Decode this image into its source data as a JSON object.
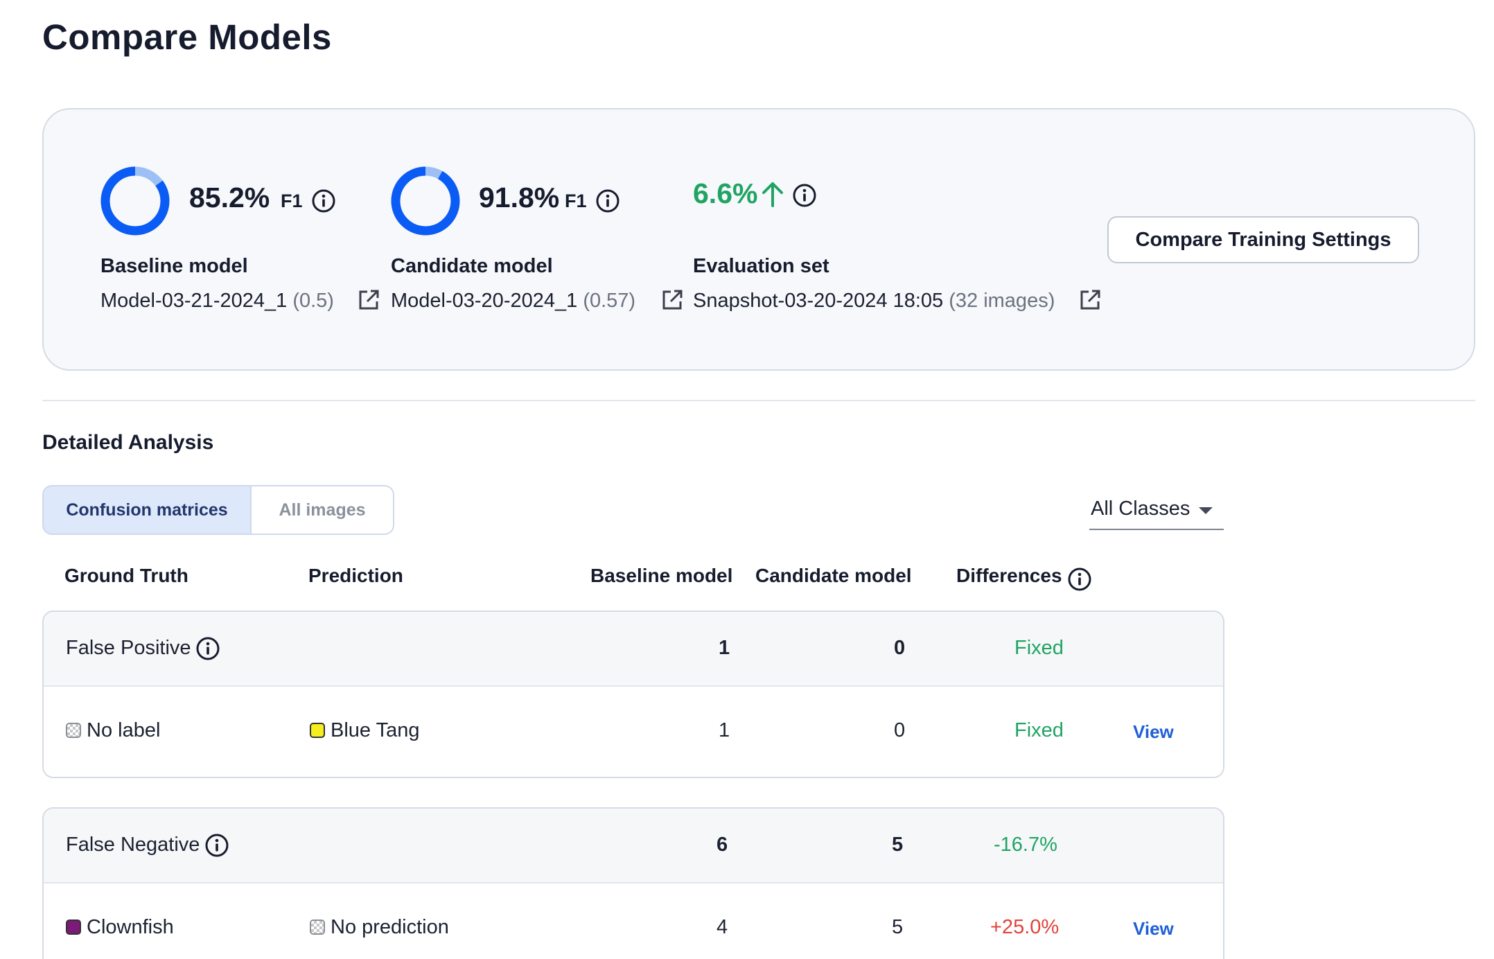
{
  "page": {
    "title": "Compare Models"
  },
  "summary": {
    "baseline": {
      "f1_value": "85.2%",
      "f1_fraction": 0.852,
      "unit": "F1",
      "label": "Baseline model",
      "name": "Model-03-21-2024_1",
      "threshold": "(0.5)"
    },
    "candidate": {
      "f1_value": "91.8%",
      "f1_fraction": 0.918,
      "unit": "F1",
      "label": "Candidate model",
      "name": "Model-03-20-2024_1",
      "threshold": "(0.57)"
    },
    "delta": {
      "value": "6.6%",
      "direction": "up"
    },
    "evaluation": {
      "label": "Evaluation set",
      "name": "Snapshot-03-20-2024 18:05",
      "count": "(32 images)"
    },
    "compare_button": "Compare Training Settings"
  },
  "analysis": {
    "title": "Detailed Analysis",
    "tabs": [
      {
        "label": "Confusion matrices",
        "active": true
      },
      {
        "label": "All images",
        "active": false
      }
    ],
    "class_filter": "All Classes",
    "columns": {
      "ground_truth": "Ground Truth",
      "prediction": "Prediction",
      "baseline": "Baseline model",
      "candidate": "Candidate model",
      "differences": "Differences"
    },
    "groups": [
      {
        "title": "False Positive",
        "baseline": "1",
        "candidate": "0",
        "difference": "Fixed",
        "rows": [
          {
            "ground_truth": "No label",
            "prediction": "Blue Tang",
            "baseline": "1",
            "candidate": "0",
            "difference": "Fixed",
            "action": "View"
          }
        ]
      },
      {
        "title": "False Negative",
        "baseline": "6",
        "candidate": "5",
        "difference": "-16.7%",
        "rows": [
          {
            "ground_truth": "Clownfish",
            "prediction": "No prediction",
            "baseline": "4",
            "candidate": "5",
            "difference": "+25.0%",
            "action": "View"
          }
        ]
      }
    ]
  },
  "colors": {
    "ring_primary": "#0a5cf5",
    "ring_remainder": "#9cc0f6",
    "positive": "#1fa463",
    "negative": "#e0433a",
    "link": "#1f5fd6",
    "blue_tang": "#f6ee1e",
    "clownfish": "#7b1a77"
  },
  "icons": {
    "info": "info-icon",
    "external": "external-link-icon",
    "arrow_up": "arrow-up-icon",
    "dropdown": "chevron-down-icon",
    "empty_class": "checkerboard-icon"
  }
}
